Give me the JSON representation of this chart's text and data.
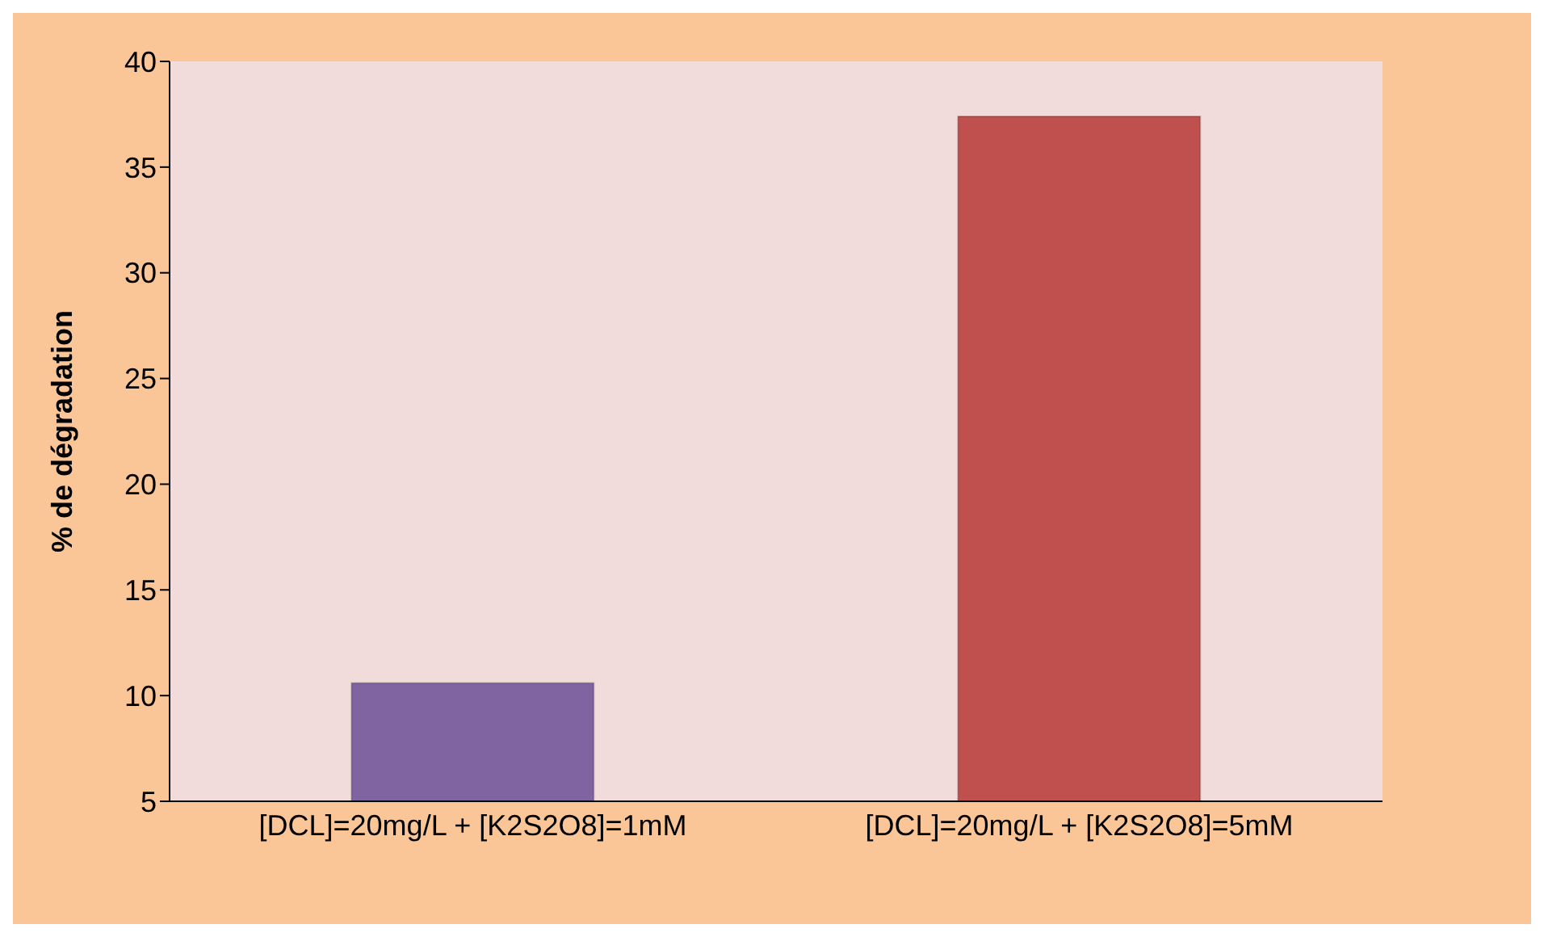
{
  "chart_data": {
    "type": "bar",
    "ylabel": "% de dégradation",
    "categories": [
      "[DCL]=20mg/L + [K2S2O8]=1mM",
      "[DCL]=20mg/L + [K2S2O8]=5mM"
    ],
    "values": [
      10.6,
      37.4
    ],
    "colors": [
      "#8064a2",
      "#c0504d"
    ],
    "ylim": [
      5,
      40
    ],
    "yticks": [
      5,
      10,
      15,
      20,
      25,
      30,
      35,
      40
    ]
  }
}
